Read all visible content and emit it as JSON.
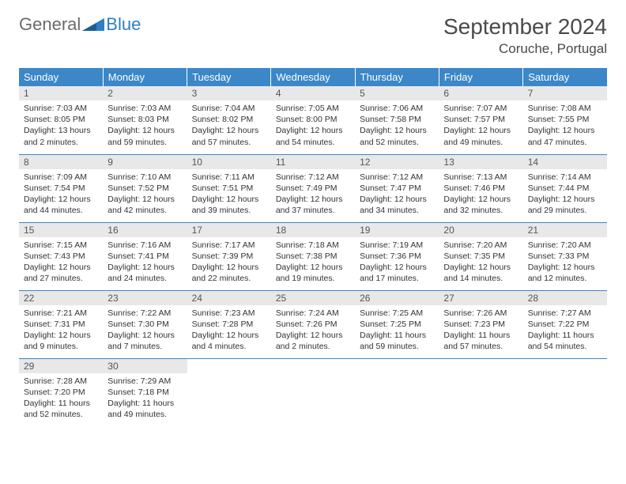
{
  "brand": {
    "part1": "General",
    "part2": "Blue"
  },
  "title": "September 2024",
  "location": "Coruche, Portugal",
  "colors": {
    "header_bg": "#3b87c8",
    "header_fg": "#ffffff",
    "daynum_bg": "#e8e8e8",
    "border": "#3b87c8",
    "logo_gray": "#6b6b6b",
    "logo_blue": "#2f7fc2"
  },
  "weekdays": [
    "Sunday",
    "Monday",
    "Tuesday",
    "Wednesday",
    "Thursday",
    "Friday",
    "Saturday"
  ],
  "days": [
    {
      "n": "1",
      "sunrise": "Sunrise: 7:03 AM",
      "sunset": "Sunset: 8:05 PM",
      "daylight": "Daylight: 13 hours and 2 minutes."
    },
    {
      "n": "2",
      "sunrise": "Sunrise: 7:03 AM",
      "sunset": "Sunset: 8:03 PM",
      "daylight": "Daylight: 12 hours and 59 minutes."
    },
    {
      "n": "3",
      "sunrise": "Sunrise: 7:04 AM",
      "sunset": "Sunset: 8:02 PM",
      "daylight": "Daylight: 12 hours and 57 minutes."
    },
    {
      "n": "4",
      "sunrise": "Sunrise: 7:05 AM",
      "sunset": "Sunset: 8:00 PM",
      "daylight": "Daylight: 12 hours and 54 minutes."
    },
    {
      "n": "5",
      "sunrise": "Sunrise: 7:06 AM",
      "sunset": "Sunset: 7:58 PM",
      "daylight": "Daylight: 12 hours and 52 minutes."
    },
    {
      "n": "6",
      "sunrise": "Sunrise: 7:07 AM",
      "sunset": "Sunset: 7:57 PM",
      "daylight": "Daylight: 12 hours and 49 minutes."
    },
    {
      "n": "7",
      "sunrise": "Sunrise: 7:08 AM",
      "sunset": "Sunset: 7:55 PM",
      "daylight": "Daylight: 12 hours and 47 minutes."
    },
    {
      "n": "8",
      "sunrise": "Sunrise: 7:09 AM",
      "sunset": "Sunset: 7:54 PM",
      "daylight": "Daylight: 12 hours and 44 minutes."
    },
    {
      "n": "9",
      "sunrise": "Sunrise: 7:10 AM",
      "sunset": "Sunset: 7:52 PM",
      "daylight": "Daylight: 12 hours and 42 minutes."
    },
    {
      "n": "10",
      "sunrise": "Sunrise: 7:11 AM",
      "sunset": "Sunset: 7:51 PM",
      "daylight": "Daylight: 12 hours and 39 minutes."
    },
    {
      "n": "11",
      "sunrise": "Sunrise: 7:12 AM",
      "sunset": "Sunset: 7:49 PM",
      "daylight": "Daylight: 12 hours and 37 minutes."
    },
    {
      "n": "12",
      "sunrise": "Sunrise: 7:12 AM",
      "sunset": "Sunset: 7:47 PM",
      "daylight": "Daylight: 12 hours and 34 minutes."
    },
    {
      "n": "13",
      "sunrise": "Sunrise: 7:13 AM",
      "sunset": "Sunset: 7:46 PM",
      "daylight": "Daylight: 12 hours and 32 minutes."
    },
    {
      "n": "14",
      "sunrise": "Sunrise: 7:14 AM",
      "sunset": "Sunset: 7:44 PM",
      "daylight": "Daylight: 12 hours and 29 minutes."
    },
    {
      "n": "15",
      "sunrise": "Sunrise: 7:15 AM",
      "sunset": "Sunset: 7:43 PM",
      "daylight": "Daylight: 12 hours and 27 minutes."
    },
    {
      "n": "16",
      "sunrise": "Sunrise: 7:16 AM",
      "sunset": "Sunset: 7:41 PM",
      "daylight": "Daylight: 12 hours and 24 minutes."
    },
    {
      "n": "17",
      "sunrise": "Sunrise: 7:17 AM",
      "sunset": "Sunset: 7:39 PM",
      "daylight": "Daylight: 12 hours and 22 minutes."
    },
    {
      "n": "18",
      "sunrise": "Sunrise: 7:18 AM",
      "sunset": "Sunset: 7:38 PM",
      "daylight": "Daylight: 12 hours and 19 minutes."
    },
    {
      "n": "19",
      "sunrise": "Sunrise: 7:19 AM",
      "sunset": "Sunset: 7:36 PM",
      "daylight": "Daylight: 12 hours and 17 minutes."
    },
    {
      "n": "20",
      "sunrise": "Sunrise: 7:20 AM",
      "sunset": "Sunset: 7:35 PM",
      "daylight": "Daylight: 12 hours and 14 minutes."
    },
    {
      "n": "21",
      "sunrise": "Sunrise: 7:20 AM",
      "sunset": "Sunset: 7:33 PM",
      "daylight": "Daylight: 12 hours and 12 minutes."
    },
    {
      "n": "22",
      "sunrise": "Sunrise: 7:21 AM",
      "sunset": "Sunset: 7:31 PM",
      "daylight": "Daylight: 12 hours and 9 minutes."
    },
    {
      "n": "23",
      "sunrise": "Sunrise: 7:22 AM",
      "sunset": "Sunset: 7:30 PM",
      "daylight": "Daylight: 12 hours and 7 minutes."
    },
    {
      "n": "24",
      "sunrise": "Sunrise: 7:23 AM",
      "sunset": "Sunset: 7:28 PM",
      "daylight": "Daylight: 12 hours and 4 minutes."
    },
    {
      "n": "25",
      "sunrise": "Sunrise: 7:24 AM",
      "sunset": "Sunset: 7:26 PM",
      "daylight": "Daylight: 12 hours and 2 minutes."
    },
    {
      "n": "26",
      "sunrise": "Sunrise: 7:25 AM",
      "sunset": "Sunset: 7:25 PM",
      "daylight": "Daylight: 11 hours and 59 minutes."
    },
    {
      "n": "27",
      "sunrise": "Sunrise: 7:26 AM",
      "sunset": "Sunset: 7:23 PM",
      "daylight": "Daylight: 11 hours and 57 minutes."
    },
    {
      "n": "28",
      "sunrise": "Sunrise: 7:27 AM",
      "sunset": "Sunset: 7:22 PM",
      "daylight": "Daylight: 11 hours and 54 minutes."
    },
    {
      "n": "29",
      "sunrise": "Sunrise: 7:28 AM",
      "sunset": "Sunset: 7:20 PM",
      "daylight": "Daylight: 11 hours and 52 minutes."
    },
    {
      "n": "30",
      "sunrise": "Sunrise: 7:29 AM",
      "sunset": "Sunset: 7:18 PM",
      "daylight": "Daylight: 11 hours and 49 minutes."
    }
  ]
}
